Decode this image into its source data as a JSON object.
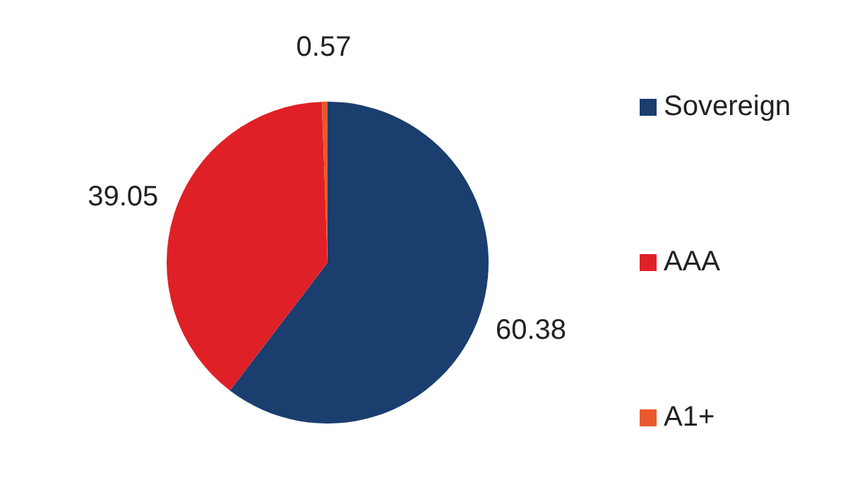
{
  "chart_data": {
    "type": "pie",
    "categories": [
      "Sovereign",
      "AAA",
      "A1+"
    ],
    "values": [
      60.38,
      39.05,
      0.57
    ],
    "colors": [
      "#1a3e6e",
      "#e02027",
      "#e8582a"
    ],
    "data_labels": true,
    "legend": "right"
  }
}
